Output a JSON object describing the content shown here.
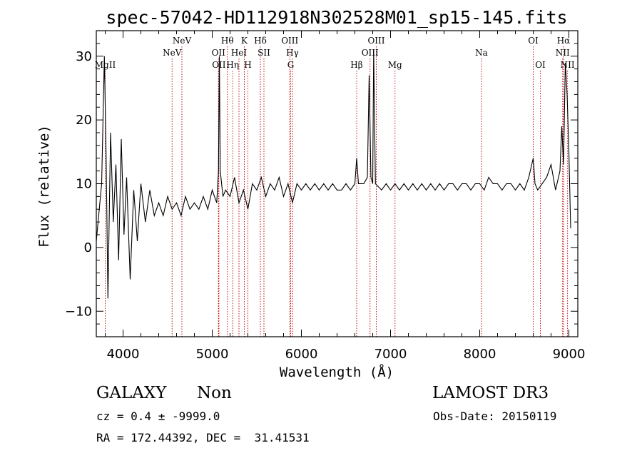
{
  "chart_data": {
    "type": "line",
    "title": "spec-57042-HD112918N302528M01_sp15-145.fits",
    "xlabel": "Wavelength (Å)",
    "ylabel": "Flux (relative)",
    "xlim": [
      3700,
      9100
    ],
    "ylim": [
      -14,
      34
    ],
    "xticks": [
      4000,
      5000,
      6000,
      7000,
      8000,
      9000
    ],
    "yticks": [
      -10,
      0,
      10,
      20,
      30
    ],
    "line_color": "#000000",
    "marker_color": "#c00000",
    "series": [
      {
        "name": "spectrum",
        "points": [
          [
            3700,
            1
          ],
          [
            3760,
            10
          ],
          [
            3790,
            30
          ],
          [
            3810,
            14
          ],
          [
            3830,
            -8
          ],
          [
            3860,
            18
          ],
          [
            3890,
            4
          ],
          [
            3920,
            13
          ],
          [
            3950,
            -2
          ],
          [
            3980,
            17
          ],
          [
            4010,
            2
          ],
          [
            4040,
            11
          ],
          [
            4080,
            -5
          ],
          [
            4120,
            9
          ],
          [
            4160,
            1
          ],
          [
            4200,
            10
          ],
          [
            4250,
            4
          ],
          [
            4300,
            9
          ],
          [
            4350,
            5
          ],
          [
            4400,
            7
          ],
          [
            4450,
            5
          ],
          [
            4500,
            8
          ],
          [
            4550,
            6
          ],
          [
            4600,
            7
          ],
          [
            4650,
            5
          ],
          [
            4700,
            8
          ],
          [
            4750,
            6
          ],
          [
            4800,
            7
          ],
          [
            4850,
            6
          ],
          [
            4900,
            8
          ],
          [
            4950,
            6
          ],
          [
            5000,
            9
          ],
          [
            5050,
            7
          ],
          [
            5070,
            12
          ],
          [
            5080,
            30
          ],
          [
            5090,
            12
          ],
          [
            5120,
            8
          ],
          [
            5150,
            9
          ],
          [
            5200,
            8
          ],
          [
            5250,
            11
          ],
          [
            5300,
            7
          ],
          [
            5350,
            9
          ],
          [
            5400,
            6
          ],
          [
            5450,
            10
          ],
          [
            5500,
            9
          ],
          [
            5550,
            11
          ],
          [
            5600,
            8
          ],
          [
            5650,
            10
          ],
          [
            5700,
            9
          ],
          [
            5750,
            11
          ],
          [
            5800,
            8
          ],
          [
            5850,
            10
          ],
          [
            5900,
            7
          ],
          [
            5950,
            10
          ],
          [
            6000,
            9
          ],
          [
            6050,
            10
          ],
          [
            6100,
            9
          ],
          [
            6150,
            10
          ],
          [
            6200,
            9
          ],
          [
            6250,
            10
          ],
          [
            6300,
            9
          ],
          [
            6350,
            10
          ],
          [
            6400,
            9
          ],
          [
            6450,
            9
          ],
          [
            6500,
            10
          ],
          [
            6550,
            9
          ],
          [
            6600,
            10
          ],
          [
            6620,
            14
          ],
          [
            6640,
            10
          ],
          [
            6700,
            10
          ],
          [
            6740,
            11
          ],
          [
            6760,
            27
          ],
          [
            6780,
            11
          ],
          [
            6800,
            10
          ],
          [
            6810,
            31
          ],
          [
            6830,
            10
          ],
          [
            6900,
            9
          ],
          [
            6950,
            10
          ],
          [
            7000,
            9
          ],
          [
            7050,
            10
          ],
          [
            7100,
            9
          ],
          [
            7150,
            10
          ],
          [
            7200,
            9
          ],
          [
            7250,
            10
          ],
          [
            7300,
            9
          ],
          [
            7350,
            10
          ],
          [
            7400,
            9
          ],
          [
            7450,
            10
          ],
          [
            7500,
            9
          ],
          [
            7550,
            10
          ],
          [
            7600,
            9
          ],
          [
            7650,
            10
          ],
          [
            7700,
            10
          ],
          [
            7750,
            9
          ],
          [
            7800,
            10
          ],
          [
            7850,
            10
          ],
          [
            7900,
            9
          ],
          [
            7950,
            10
          ],
          [
            8000,
            10
          ],
          [
            8050,
            9
          ],
          [
            8100,
            11
          ],
          [
            8150,
            10
          ],
          [
            8200,
            10
          ],
          [
            8250,
            9
          ],
          [
            8300,
            10
          ],
          [
            8350,
            10
          ],
          [
            8400,
            9
          ],
          [
            8450,
            10
          ],
          [
            8500,
            9
          ],
          [
            8550,
            11
          ],
          [
            8600,
            14
          ],
          [
            8620,
            10
          ],
          [
            8650,
            9
          ],
          [
            8700,
            10
          ],
          [
            8750,
            11
          ],
          [
            8800,
            13
          ],
          [
            8850,
            9
          ],
          [
            8900,
            12
          ],
          [
            8920,
            19
          ],
          [
            8940,
            13
          ],
          [
            8960,
            29
          ],
          [
            8980,
            24
          ],
          [
            9000,
            15
          ],
          [
            9020,
            3
          ]
        ]
      }
    ],
    "spectral_lines": [
      {
        "label": "MgII",
        "wavelength": 3800,
        "row": 3
      },
      {
        "label": "NeV",
        "wavelength": 4550,
        "row": 2
      },
      {
        "label": "NeV",
        "wavelength": 4660,
        "row": 1
      },
      {
        "label": "OII",
        "wavelength": 5070,
        "row": 2
      },
      {
        "label": "OII",
        "wavelength": 5075,
        "row": 3
      },
      {
        "label": "Hθ",
        "wavelength": 5170,
        "row": 1
      },
      {
        "label": "Hη",
        "wavelength": 5230,
        "row": 3
      },
      {
        "label": "HeI",
        "wavelength": 5300,
        "row": 2
      },
      {
        "label": "K",
        "wavelength": 5360,
        "row": 1
      },
      {
        "label": "H",
        "wavelength": 5400,
        "row": 3
      },
      {
        "label": "Hδ",
        "wavelength": 5540,
        "row": 1
      },
      {
        "label": "SII",
        "wavelength": 5580,
        "row": 2
      },
      {
        "label": "OIII",
        "wavelength": 5870,
        "row": 1
      },
      {
        "label": "Hγ",
        "wavelength": 5900,
        "row": 2
      },
      {
        "label": "G",
        "wavelength": 5880,
        "row": 3
      },
      {
        "label": "Hβ",
        "wavelength": 6620,
        "row": 3
      },
      {
        "label": "OIII",
        "wavelength": 6770,
        "row": 2
      },
      {
        "label": "OIII",
        "wavelength": 6840,
        "row": 1
      },
      {
        "label": "Mg",
        "wavelength": 7050,
        "row": 3
      },
      {
        "label": "Na",
        "wavelength": 8020,
        "row": 2
      },
      {
        "label": "OI",
        "wavelength": 8600,
        "row": 1
      },
      {
        "label": "OI",
        "wavelength": 8680,
        "row": 3
      },
      {
        "label": "Hα",
        "wavelength": 8940,
        "row": 1
      },
      {
        "label": "NII",
        "wavelength": 8930,
        "row": 2
      },
      {
        "label": "NII",
        "wavelength": 8985,
        "row": 3
      }
    ]
  },
  "info": {
    "class": "GALAXY",
    "subclass": "Non",
    "survey": "LAMOST DR3",
    "cz": "cz = 0.4 ± -9999.0",
    "obs_date": "Obs-Date: 20150119",
    "coords": "RA = 172.44392, DEC =  31.41531"
  }
}
